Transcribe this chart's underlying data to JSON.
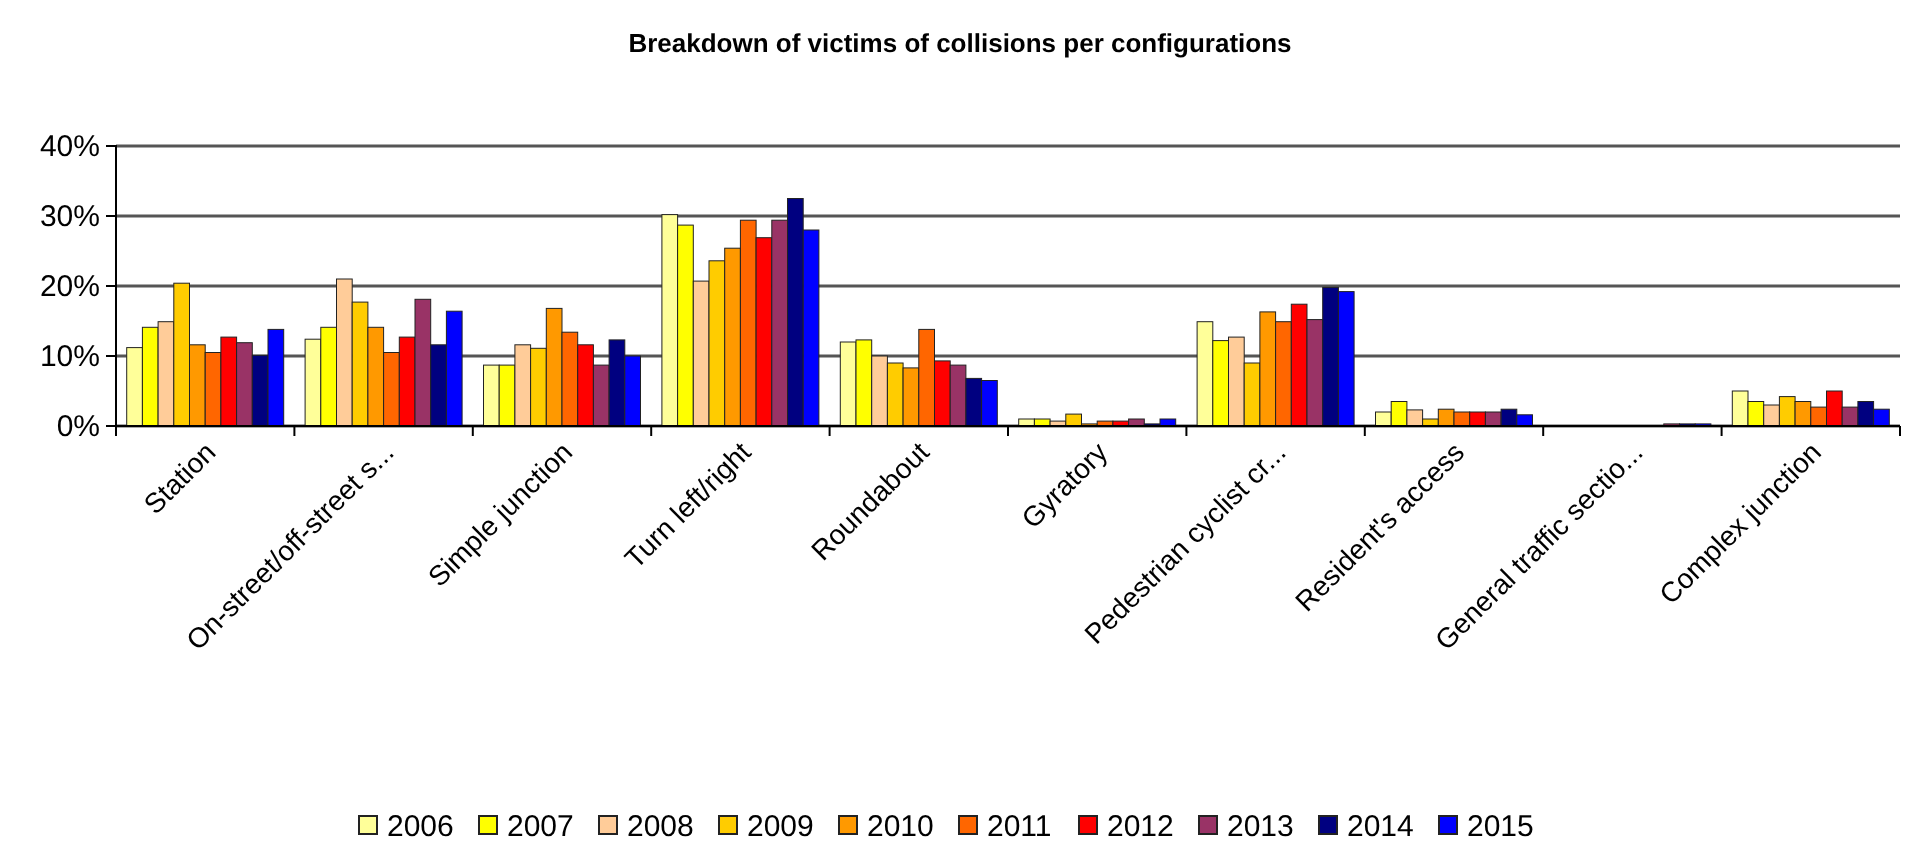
{
  "chart_data": {
    "type": "bar",
    "title": "Breakdown of victims of collisions per configurations",
    "categories": [
      "Station",
      "On-street/off-street s...",
      "Simple junction",
      "Turn left/right",
      "Roundabout",
      "Gyratory",
      "Pedestrian cyclist cr...",
      "Resident's access",
      "General traffic sectio...",
      "Complex junction"
    ],
    "series": [
      {
        "name": "2006",
        "color": "#ffff99",
        "values": [
          11.2,
          12.4,
          8.7,
          30.2,
          12.0,
          1.0,
          14.9,
          2.0,
          0,
          5.0
        ]
      },
      {
        "name": "2007",
        "color": "#ffff00",
        "values": [
          14.1,
          14.1,
          8.7,
          28.7,
          12.3,
          1.0,
          12.2,
          3.5,
          0,
          3.5
        ]
      },
      {
        "name": "2008",
        "color": "#ffcc99",
        "values": [
          14.9,
          21.0,
          11.6,
          20.7,
          10.0,
          0.7,
          12.7,
          2.3,
          0,
          3.0
        ]
      },
      {
        "name": "2009",
        "color": "#ffcc00",
        "values": [
          20.4,
          17.7,
          11.1,
          23.6,
          9.0,
          1.7,
          9.0,
          1.0,
          0,
          4.2
        ]
      },
      {
        "name": "2010",
        "color": "#ff9900",
        "values": [
          11.6,
          14.1,
          16.8,
          25.4,
          8.3,
          0.3,
          16.3,
          2.4,
          0,
          3.5
        ]
      },
      {
        "name": "2011",
        "color": "#ff6600",
        "values": [
          10.5,
          10.5,
          13.4,
          29.4,
          13.8,
          0.7,
          14.9,
          2.0,
          0,
          2.7
        ]
      },
      {
        "name": "2012",
        "color": "#ff0000",
        "values": [
          12.7,
          12.7,
          11.6,
          26.9,
          9.3,
          0.7,
          17.4,
          2.0,
          0,
          5.0
        ]
      },
      {
        "name": "2013",
        "color": "#993366",
        "values": [
          11.9,
          18.1,
          8.7,
          29.4,
          8.7,
          1.0,
          15.2,
          2.0,
          0.3,
          2.7
        ]
      },
      {
        "name": "2014",
        "color": "#000080",
        "values": [
          10.1,
          11.6,
          12.3,
          32.5,
          6.8,
          0.3,
          19.8,
          2.4,
          0.3,
          3.5
        ]
      },
      {
        "name": "2015",
        "color": "#0000ff",
        "values": [
          13.8,
          16.4,
          10.0,
          28.0,
          6.5,
          1.0,
          19.2,
          1.6,
          0.3,
          2.4
        ]
      }
    ],
    "ylim": [
      0,
      40
    ],
    "yticks": [
      {
        "value": 0,
        "label": "0%"
      },
      {
        "value": 10,
        "label": "10%"
      },
      {
        "value": 20,
        "label": "20%"
      },
      {
        "value": 30,
        "label": "30%"
      },
      {
        "value": 40,
        "label": "40%"
      }
    ],
    "grid": "y",
    "legend": "bottom"
  }
}
